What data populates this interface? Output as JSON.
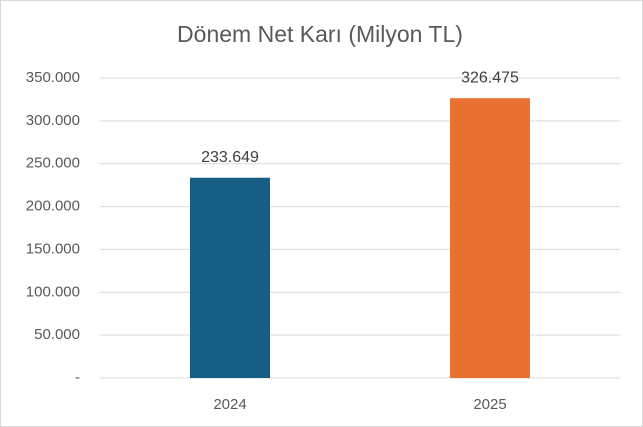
{
  "chart_data": {
    "type": "bar",
    "title": "Dönem Net Karı (Milyon TL)",
    "categories": [
      "2024",
      "2025"
    ],
    "values": [
      233649,
      326475
    ],
    "value_labels": [
      "233.649",
      "326.475"
    ],
    "colors": [
      "#175e84",
      "#e97132"
    ],
    "ylim": [
      0,
      350000
    ],
    "yticks": [
      {
        "value": 0,
        "label": "-"
      },
      {
        "value": 50000,
        "label": "50.000"
      },
      {
        "value": 100000,
        "label": "100.000"
      },
      {
        "value": 150000,
        "label": "150.000"
      },
      {
        "value": 200000,
        "label": "200.000"
      },
      {
        "value": 250000,
        "label": "250.000"
      },
      {
        "value": 300000,
        "label": "300.000"
      },
      {
        "value": 350000,
        "label": "350.000"
      }
    ],
    "grid": true
  }
}
